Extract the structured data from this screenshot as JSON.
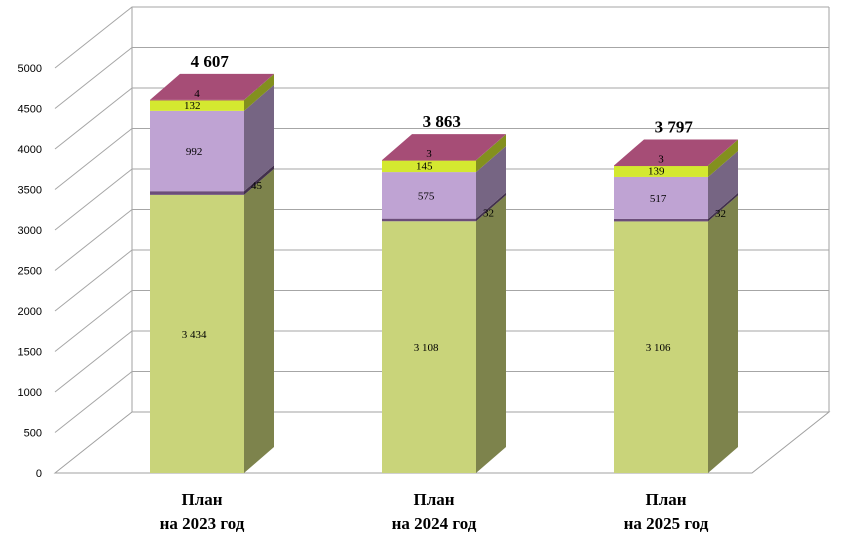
{
  "chart_data": {
    "type": "bar",
    "stacked": true,
    "three_d": true,
    "categories": [
      [
        "План",
        "на 2023 год"
      ],
      [
        "План",
        "на 2024 год"
      ],
      [
        "План",
        "на 2025 год"
      ]
    ],
    "series": [
      {
        "values": [
          3434,
          3108,
          3106
        ],
        "labels": [
          "3 434",
          "3 108",
          "3 106"
        ],
        "color": "#c9d47a"
      },
      {
        "values": [
          45,
          32,
          32
        ],
        "labels": [
          "45",
          "32",
          "32"
        ],
        "color": "#6b4d7a"
      },
      {
        "values": [
          992,
          575,
          517
        ],
        "labels": [
          "992",
          "575",
          "517"
        ],
        "color": "#bfa3d3"
      },
      {
        "values": [
          132,
          145,
          139
        ],
        "labels": [
          "132",
          "145",
          "139"
        ],
        "color": "#d4e830"
      },
      {
        "values": [
          4,
          3,
          3
        ],
        "labels": [
          "4",
          "3",
          "3"
        ],
        "color": "#a64d76"
      }
    ],
    "totals": [
      "4 607",
      "3 863",
      "3 797"
    ],
    "yticks": [
      "0",
      "500",
      "1000",
      "1500",
      "2000",
      "2500",
      "3000",
      "3500",
      "4000",
      "4500",
      "5000"
    ],
    "ylim": [
      0,
      5000
    ],
    "grid": true,
    "legend": "none"
  }
}
